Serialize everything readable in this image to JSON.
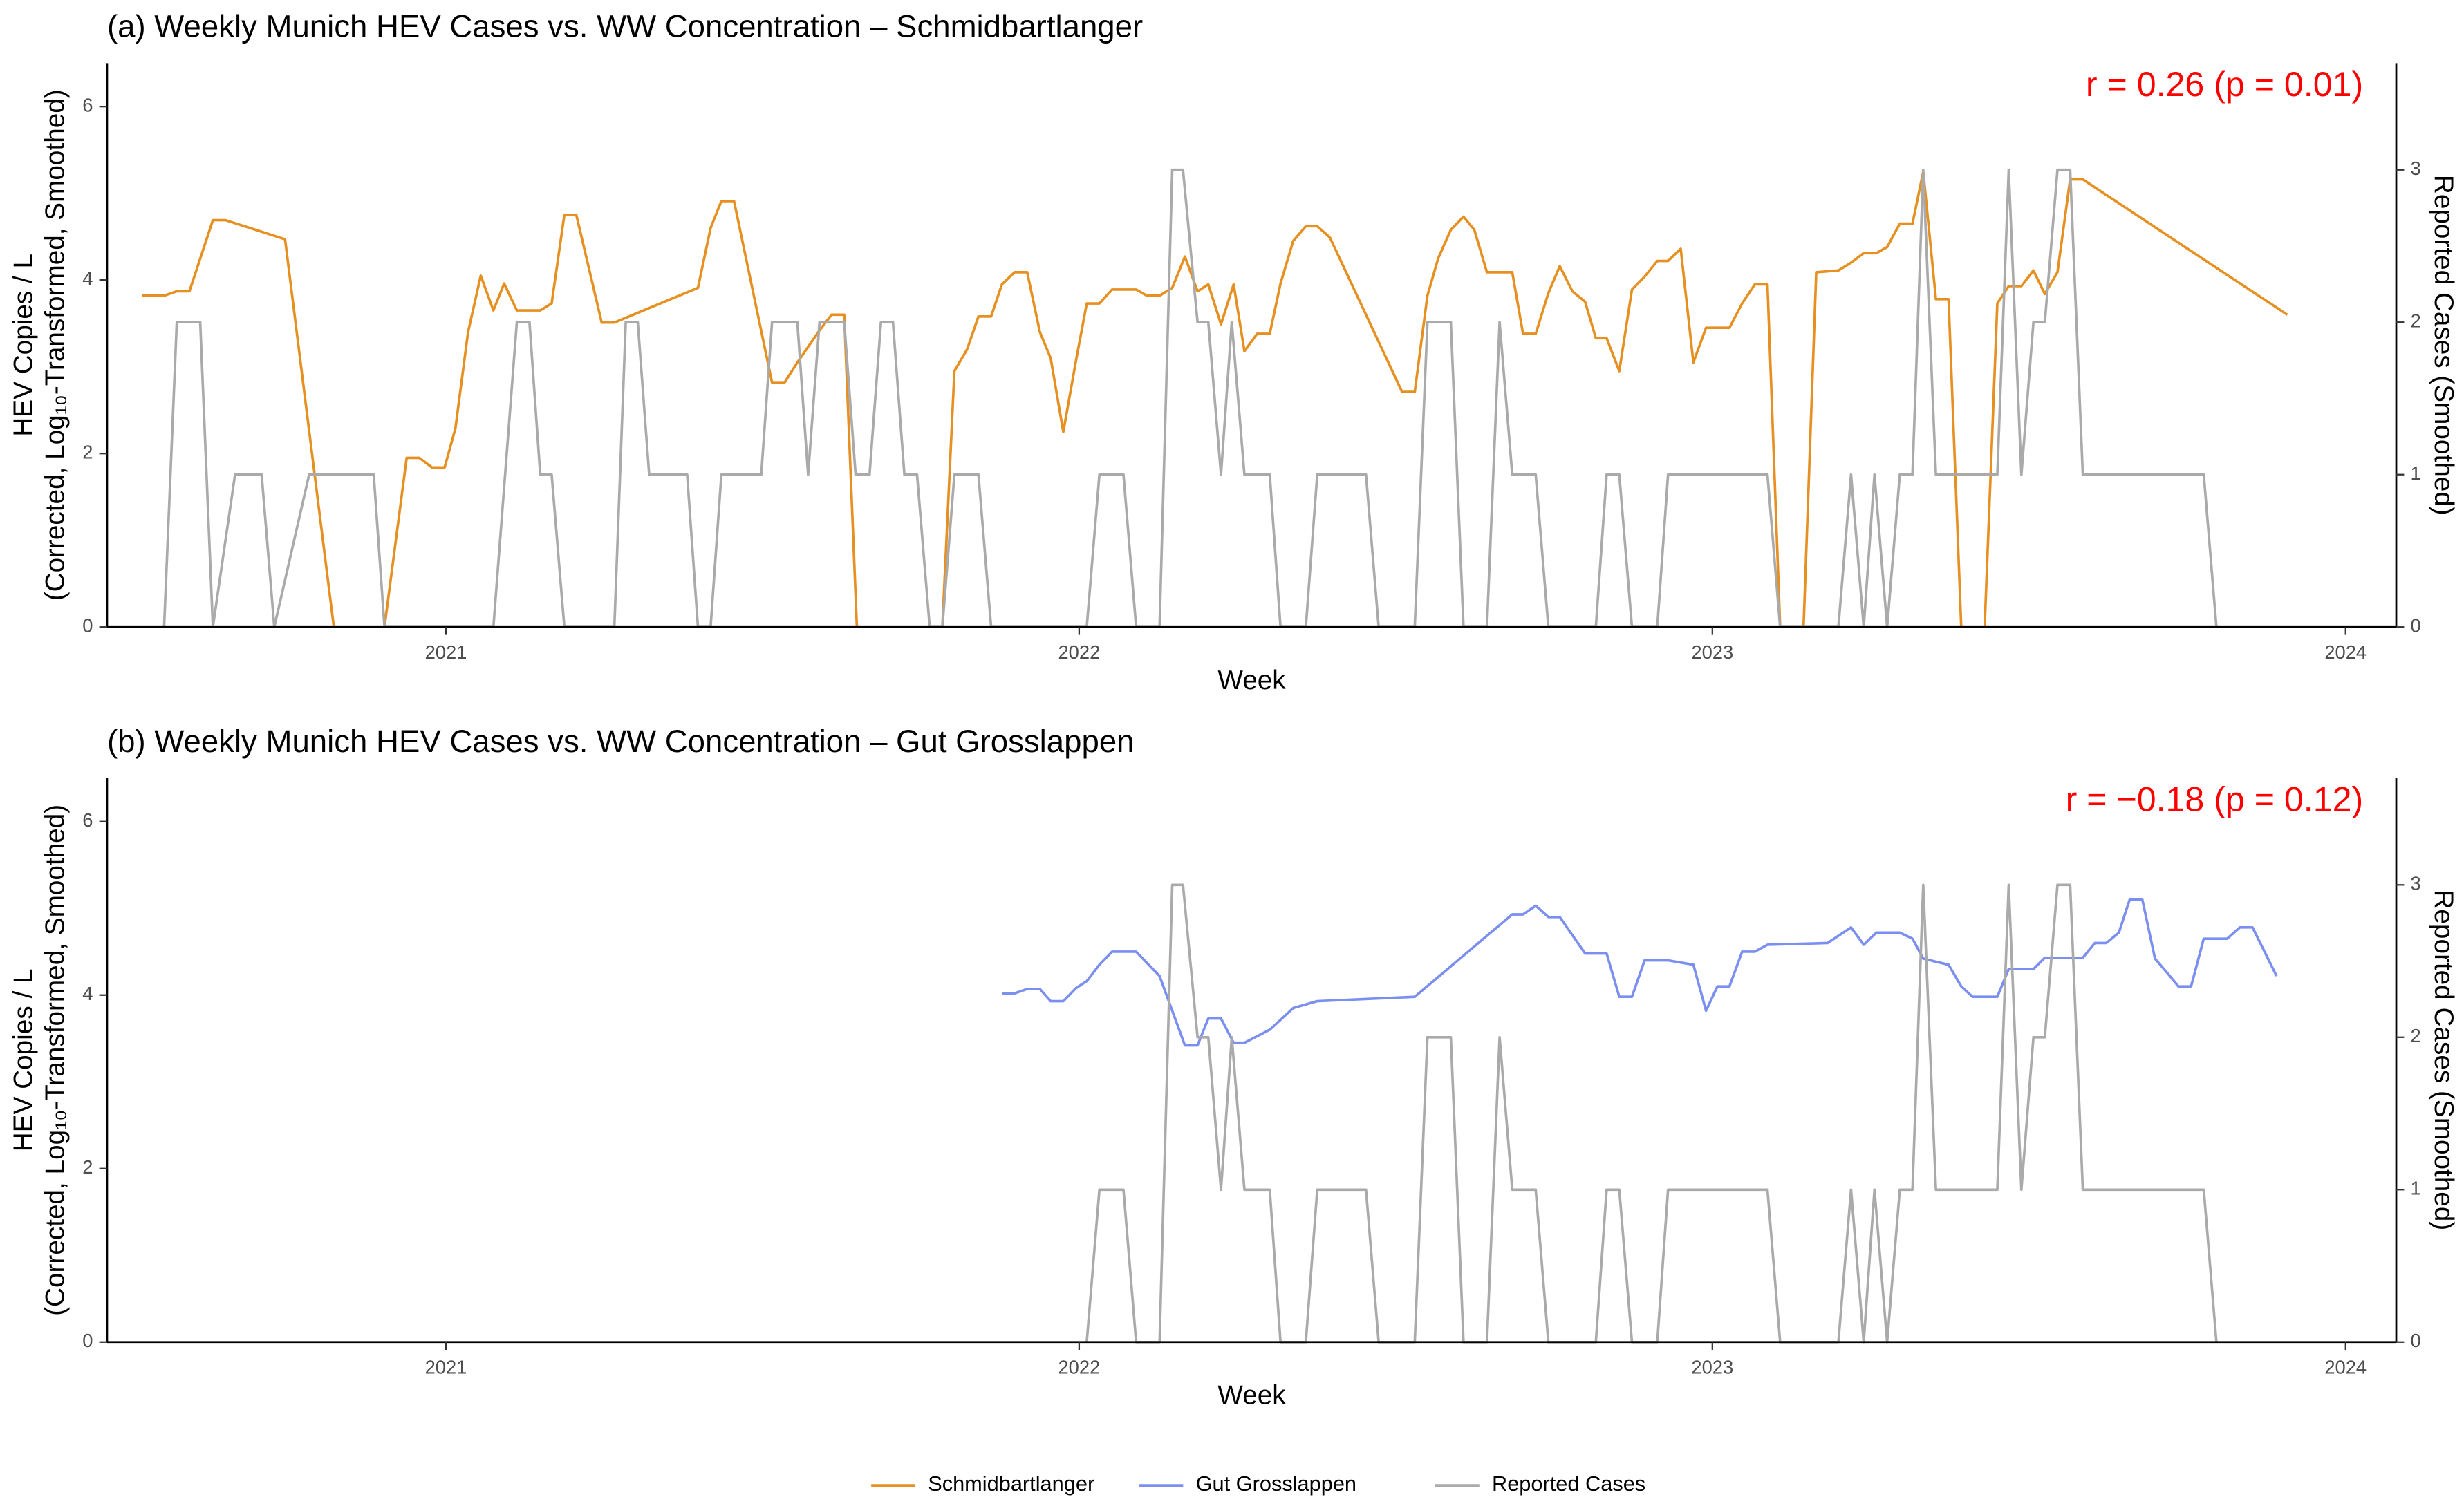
{
  "chart_data": [
    {
      "type": "line",
      "title": "(a) Weekly Munich HEV Cases vs. WW Concentration – Schmidbartlanger",
      "annotation": "r = 0.26 (p = 0.01)",
      "xlabel": "Week",
      "ylabel": [
        "HEV Copies / L",
        "(Corrected, Log₁₀-Transformed, Smoothed)"
      ],
      "y2label": "Reported Cases (Smoothed)",
      "xlim": [
        2020.465,
        2024.08
      ],
      "xticks": [
        2021,
        2022,
        2023,
        2024
      ],
      "ylim": [
        0,
        6.5
      ],
      "yticks": [
        0,
        2,
        4,
        6
      ],
      "y2lim": [
        0,
        3.7
      ],
      "y2ticks": [
        0,
        1,
        2,
        3
      ],
      "series": [
        {
          "name": "Schmidbartlanger",
          "color": "#e69022",
          "x": [
            2020.52,
            2020.555,
            2020.575,
            2020.595,
            2020.632,
            2020.652,
            2020.746,
            2020.823,
            2020.863,
            2020.903,
            2020.938,
            2020.958,
            2020.978,
            2020.998,
            2021.015,
            2021.035,
            2021.055,
            2021.075,
            2021.092,
            2021.112,
            2021.149,
            2021.167,
            2021.187,
            2021.206,
            2021.246,
            2021.266,
            2021.398,
            2021.418,
            2021.435,
            2021.455,
            2021.515,
            2021.535,
            2021.555,
            2021.59,
            2021.609,
            2021.629,
            2021.649,
            2021.716,
            2021.784,
            2021.803,
            2021.823,
            2021.841,
            2021.861,
            2021.878,
            2021.898,
            2021.918,
            2021.938,
            2021.955,
            2021.975,
            2021.995,
            2022.012,
            2022.032,
            2022.052,
            2022.09,
            2022.107,
            2022.127,
            2022.147,
            2022.167,
            2022.187,
            2022.204,
            2022.224,
            2022.244,
            2022.261,
            2022.281,
            2022.301,
            2022.318,
            2022.338,
            2022.358,
            2022.376,
            2022.396,
            2022.51,
            2022.53,
            2022.55,
            2022.567,
            2022.587,
            2022.607,
            2022.624,
            2022.644,
            2022.684,
            2022.701,
            2022.721,
            2022.741,
            2022.759,
            2022.779,
            2022.799,
            2022.816,
            2022.833,
            2022.853,
            2022.873,
            2022.893,
            2022.913,
            2022.93,
            2022.95,
            2022.97,
            2022.99,
            2023.027,
            2023.047,
            2023.067,
            2023.087,
            2023.107,
            2023.124,
            2023.144,
            2023.164,
            2023.199,
            2023.219,
            2023.239,
            2023.259,
            2023.276,
            2023.296,
            2023.316,
            2023.333,
            2023.353,
            2023.373,
            2023.393,
            2023.411,
            2023.43,
            2023.45,
            2023.468,
            2023.488,
            2023.507,
            2023.525,
            2023.545,
            2023.565,
            2023.585,
            2023.908
          ],
          "values": [
            3.82,
            3.82,
            3.87,
            3.87,
            4.69,
            4.69,
            4.47,
            0,
            null,
            0,
            1.95,
            1.95,
            1.84,
            1.84,
            2.29,
            3.4,
            4.05,
            3.65,
            3.96,
            3.65,
            3.65,
            3.73,
            4.75,
            4.75,
            3.51,
            3.51,
            3.91,
            4.6,
            4.91,
            4.91,
            2.82,
            2.82,
            3.05,
            3.42,
            3.6,
            3.6,
            0,
            null,
            0,
            2.95,
            3.2,
            3.58,
            3.58,
            3.95,
            4.09,
            4.09,
            3.4,
            3.1,
            2.25,
            3.07,
            3.73,
            3.73,
            3.89,
            3.89,
            3.82,
            3.82,
            3.91,
            4.27,
            3.87,
            3.95,
            3.49,
            3.95,
            3.18,
            3.38,
            3.38,
            3.96,
            4.45,
            4.62,
            4.62,
            4.49,
            2.71,
            2.71,
            3.82,
            4.25,
            4.58,
            4.73,
            4.58,
            4.09,
            4.09,
            3.38,
            3.38,
            3.85,
            4.16,
            3.87,
            3.75,
            3.33,
            3.33,
            2.95,
            3.89,
            4.04,
            4.22,
            4.22,
            4.36,
            3.05,
            3.45,
            3.45,
            3.73,
            3.95,
            3.95,
            0,
            null,
            0,
            4.09,
            4.11,
            4.2,
            4.31,
            4.31,
            4.38,
            4.65,
            4.65,
            5.25,
            3.78,
            3.78,
            0,
            null,
            0,
            3.73,
            3.93,
            3.93,
            4.11,
            3.84,
            4.09,
            5.16,
            5.16,
            3.6
          ]
        },
        {
          "name": "Reported Cases",
          "color": "#aaaaaa",
          "axis": "y2",
          "x": [
            2020.555,
            2020.575,
            2020.612,
            2020.632,
            2020.667,
            2020.709,
            2020.729,
            2020.784,
            2020.886,
            2020.903,
            2021.075,
            2021.112,
            2021.132,
            2021.149,
            2021.167,
            2021.187,
            2021.266,
            2021.284,
            2021.303,
            2021.321,
            2021.381,
            2021.398,
            2021.418,
            2021.435,
            2021.498,
            2021.515,
            2021.555,
            2021.572,
            2021.59,
            2021.629,
            2021.647,
            2021.669,
            2021.687,
            2021.706,
            2021.724,
            2021.744,
            2021.764,
            2021.784,
            2021.803,
            2021.841,
            2021.861,
            2022.012,
            2022.032,
            2022.07,
            2022.09,
            2022.127,
            2022.147,
            2022.164,
            2022.187,
            2022.204,
            2022.224,
            2022.241,
            2022.261,
            2022.301,
            2022.318,
            2022.358,
            2022.376,
            2022.453,
            2022.473,
            2022.53,
            2022.55,
            2022.587,
            2022.607,
            2022.644,
            2022.664,
            2022.684,
            2022.721,
            2022.741,
            2022.816,
            2022.833,
            2022.853,
            2022.873,
            2022.913,
            2022.93,
            2023.087,
            2023.107,
            2023.199,
            2023.219,
            2023.239,
            2023.256,
            2023.276,
            2023.296,
            2023.316,
            2023.333,
            2023.353,
            2023.45,
            2023.468,
            2023.488,
            2023.507,
            2023.525,
            2023.545,
            2023.565,
            2023.585,
            2023.776,
            2023.796
          ],
          "values": [
            0,
            2,
            2,
            0,
            1,
            1,
            0,
            1,
            1,
            0,
            0,
            2,
            2,
            1,
            1,
            0,
            0,
            2,
            2,
            1,
            1,
            0,
            0,
            1,
            1,
            2,
            2,
            1,
            2,
            2,
            1,
            1,
            2,
            2,
            1,
            1,
            0,
            0,
            1,
            1,
            0,
            0,
            1,
            1,
            0,
            0,
            3,
            3,
            2,
            2,
            1,
            2,
            1,
            1,
            0,
            0,
            1,
            1,
            0,
            0,
            2,
            2,
            0,
            0,
            2,
            1,
            1,
            0,
            0,
            1,
            1,
            0,
            0,
            1,
            1,
            0,
            0,
            1,
            0,
            1,
            0,
            1,
            1,
            3,
            1,
            1,
            3,
            1,
            2,
            2,
            3,
            3,
            1,
            1,
            0
          ]
        }
      ]
    },
    {
      "type": "line",
      "title": "(b) Weekly Munich HEV Cases vs. WW Concentration – Gut Grosslappen",
      "annotation": "r = −0.18 (p = 0.12)",
      "xlabel": "Week",
      "ylabel": [
        "HEV Copies / L",
        "(Corrected, Log₁₀-Transformed, Smoothed)"
      ],
      "y2label": "Reported Cases (Smoothed)",
      "xlim": [
        2020.465,
        2024.08
      ],
      "xticks": [
        2021,
        2022,
        2023,
        2024
      ],
      "ylim": [
        0,
        6.5
      ],
      "yticks": [
        0,
        2,
        4,
        6
      ],
      "y2lim": [
        0,
        3.7
      ],
      "y2ticks": [
        0,
        1,
        2,
        3
      ],
      "series": [
        {
          "name": "Gut Grosslappen",
          "color": "#7b8ff0",
          "x": [
            2021.878,
            2021.898,
            2021.918,
            2021.938,
            2021.955,
            2021.975,
            2021.995,
            2022.012,
            2022.032,
            2022.052,
            2022.09,
            2022.127,
            2022.167,
            2022.187,
            2022.204,
            2022.224,
            2022.244,
            2022.261,
            2022.301,
            2022.338,
            2022.376,
            2022.53,
            2022.684,
            2022.701,
            2022.721,
            2022.741,
            2022.759,
            2022.799,
            2022.833,
            2022.853,
            2022.873,
            2022.893,
            2022.93,
            2022.97,
            2022.99,
            2023.008,
            2023.027,
            2023.047,
            2023.067,
            2023.087,
            2023.182,
            2023.219,
            2023.239,
            2023.259,
            2023.296,
            2023.316,
            2023.333,
            2023.373,
            2023.393,
            2023.411,
            2023.45,
            2023.468,
            2023.507,
            2023.525,
            2023.585,
            2023.604,
            2023.622,
            2023.642,
            2023.659,
            2023.679,
            2023.699,
            2023.719,
            2023.736,
            2023.756,
            2023.776,
            2023.813,
            2023.833,
            2023.853,
            2023.891
          ],
          "values": [
            4.02,
            4.02,
            4.07,
            4.07,
            3.93,
            3.93,
            4.08,
            4.16,
            4.35,
            4.5,
            4.5,
            4.22,
            3.42,
            3.42,
            3.73,
            3.73,
            3.45,
            3.45,
            3.6,
            3.85,
            3.93,
            3.98,
            4.93,
            4.93,
            5.03,
            4.9,
            4.9,
            4.48,
            4.48,
            3.98,
            3.98,
            4.4,
            4.4,
            4.35,
            3.82,
            4.1,
            4.1,
            4.5,
            4.5,
            4.58,
            4.6,
            4.78,
            4.58,
            4.72,
            4.72,
            4.65,
            4.42,
            4.35,
            4.1,
            3.98,
            3.98,
            4.3,
            4.3,
            4.43,
            4.43,
            4.6,
            4.6,
            4.72,
            5.1,
            5.1,
            4.42,
            4.25,
            4.1,
            4.1,
            4.65,
            4.65,
            4.78,
            4.78,
            4.22
          ]
        },
        {
          "name": "Reported Cases",
          "color": "#aaaaaa",
          "axis": "y2",
          "x": [
            2022.012,
            2022.032,
            2022.07,
            2022.09,
            2022.127,
            2022.147,
            2022.164,
            2022.187,
            2022.204,
            2022.224,
            2022.241,
            2022.261,
            2022.301,
            2022.318,
            2022.358,
            2022.376,
            2022.453,
            2022.473,
            2022.53,
            2022.55,
            2022.587,
            2022.607,
            2022.644,
            2022.664,
            2022.684,
            2022.721,
            2022.741,
            2022.816,
            2022.833,
            2022.853,
            2022.873,
            2022.913,
            2022.93,
            2023.087,
            2023.107,
            2023.199,
            2023.219,
            2023.239,
            2023.256,
            2023.276,
            2023.296,
            2023.316,
            2023.333,
            2023.353,
            2023.45,
            2023.468,
            2023.488,
            2023.507,
            2023.525,
            2023.545,
            2023.565,
            2023.585,
            2023.776,
            2023.796
          ],
          "values": [
            0,
            1,
            1,
            0,
            0,
            3,
            3,
            2,
            2,
            1,
            2,
            1,
            1,
            0,
            0,
            1,
            1,
            0,
            0,
            2,
            2,
            0,
            0,
            2,
            1,
            1,
            0,
            0,
            1,
            1,
            0,
            0,
            1,
            1,
            0,
            0,
            1,
            0,
            1,
            0,
            1,
            1,
            3,
            1,
            1,
            3,
            1,
            2,
            2,
            3,
            3,
            1,
            1,
            0
          ]
        }
      ]
    }
  ]
}
